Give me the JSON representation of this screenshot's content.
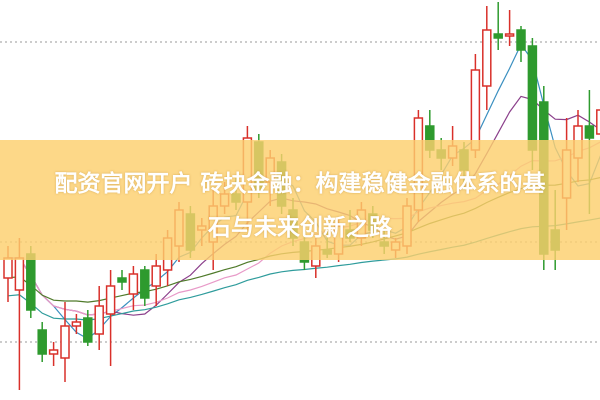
{
  "title": {
    "line1": "配资官网开户 砖块金融：构建稳健金融体系的基",
    "line2": "石与未来创新之路"
  },
  "chart_data": {
    "type": "candlestick",
    "grid": "dotted horizontal lines",
    "colors": {
      "up": "#d9302a",
      "down": "#2e9a2e",
      "overlay_band": "#fcd06e",
      "ma_lines": [
        "#3a8fc0",
        "#8b3f8b",
        "#e89ac8",
        "#4f7a2a",
        "#2f9c9c"
      ]
    },
    "ma_periods": [
      5,
      10,
      20,
      30,
      60
    ],
    "candles": [
      {
        "o": 28,
        "h": 36,
        "l": 22,
        "c": 33
      },
      {
        "o": 25,
        "h": 38,
        "l": 0,
        "c": 33
      },
      {
        "o": 34,
        "h": 36,
        "l": 18,
        "c": 20
      },
      {
        "o": 15,
        "h": 17,
        "l": 7,
        "c": 9
      },
      {
        "o": 9,
        "h": 12,
        "l": 6,
        "c": 10
      },
      {
        "o": 8,
        "h": 22,
        "l": 2,
        "c": 16
      },
      {
        "o": 16,
        "h": 19,
        "l": 14,
        "c": 17
      },
      {
        "o": 18,
        "h": 20,
        "l": 11,
        "c": 12
      },
      {
        "o": 14,
        "h": 26,
        "l": 10,
        "c": 21
      },
      {
        "o": 19,
        "h": 30,
        "l": 6,
        "c": 26
      },
      {
        "o": 28,
        "h": 30,
        "l": 25,
        "c": 27
      },
      {
        "o": 24,
        "h": 31,
        "l": 20,
        "c": 29
      },
      {
        "o": 30,
        "h": 31,
        "l": 21,
        "c": 23
      },
      {
        "o": 26,
        "h": 34,
        "l": 21,
        "c": 31
      },
      {
        "o": 30,
        "h": 40,
        "l": 26,
        "c": 38
      },
      {
        "o": 36,
        "h": 47,
        "l": 32,
        "c": 45
      },
      {
        "o": 44,
        "h": 46,
        "l": 33,
        "c": 35
      },
      {
        "o": 40,
        "h": 43,
        "l": 36,
        "c": 41
      },
      {
        "o": 37,
        "h": 50,
        "l": 30,
        "c": 46
      },
      {
        "o": 46,
        "h": 52,
        "l": 44,
        "c": 49
      },
      {
        "o": 49,
        "h": 53,
        "l": 45,
        "c": 47
      },
      {
        "o": 47,
        "h": 66,
        "l": 40,
        "c": 63
      },
      {
        "o": 62,
        "h": 64,
        "l": 48,
        "c": 50
      },
      {
        "o": 52,
        "h": 60,
        "l": 46,
        "c": 58
      },
      {
        "o": 57,
        "h": 59,
        "l": 44,
        "c": 46
      },
      {
        "o": 45,
        "h": 48,
        "l": 36,
        "c": 38
      },
      {
        "o": 37,
        "h": 40,
        "l": 30,
        "c": 32
      },
      {
        "o": 31,
        "h": 38,
        "l": 28,
        "c": 36
      },
      {
        "o": 35,
        "h": 40,
        "l": 33,
        "c": 34
      },
      {
        "o": 34,
        "h": 43,
        "l": 32,
        "c": 41
      },
      {
        "o": 40,
        "h": 45,
        "l": 37,
        "c": 38
      },
      {
        "o": 38,
        "h": 47,
        "l": 36,
        "c": 45
      },
      {
        "o": 44,
        "h": 46,
        "l": 38,
        "c": 40
      },
      {
        "o": 37,
        "h": 40,
        "l": 34,
        "c": 36
      },
      {
        "o": 35,
        "h": 38,
        "l": 33,
        "c": 37
      },
      {
        "o": 36,
        "h": 48,
        "l": 34,
        "c": 46
      },
      {
        "o": 45,
        "h": 70,
        "l": 42,
        "c": 68
      },
      {
        "o": 66,
        "h": 70,
        "l": 58,
        "c": 60
      },
      {
        "o": 60,
        "h": 63,
        "l": 55,
        "c": 58
      },
      {
        "o": 58,
        "h": 66,
        "l": 56,
        "c": 61
      },
      {
        "o": 60,
        "h": 62,
        "l": 50,
        "c": 55
      },
      {
        "o": 60,
        "h": 84,
        "l": 58,
        "c": 80
      },
      {
        "o": 76,
        "h": 96,
        "l": 70,
        "c": 90
      },
      {
        "o": 89,
        "h": 97,
        "l": 85,
        "c": 88
      },
      {
        "o": 89,
        "h": 95,
        "l": 86,
        "c": 89
      },
      {
        "o": 90,
        "h": 91,
        "l": 82,
        "c": 85
      },
      {
        "o": 86,
        "h": 88,
        "l": 55,
        "c": 60
      },
      {
        "o": 72,
        "h": 76,
        "l": 30,
        "c": 34
      },
      {
        "o": 40,
        "h": 50,
        "l": 30,
        "c": 35
      },
      {
        "o": 48,
        "h": 68,
        "l": 40,
        "c": 60
      },
      {
        "o": 58,
        "h": 70,
        "l": 52,
        "c": 66
      },
      {
        "o": 66,
        "h": 75,
        "l": 44,
        "c": 63
      },
      {
        "o": 64,
        "h": 74,
        "l": 36,
        "c": 70
      }
    ]
  }
}
